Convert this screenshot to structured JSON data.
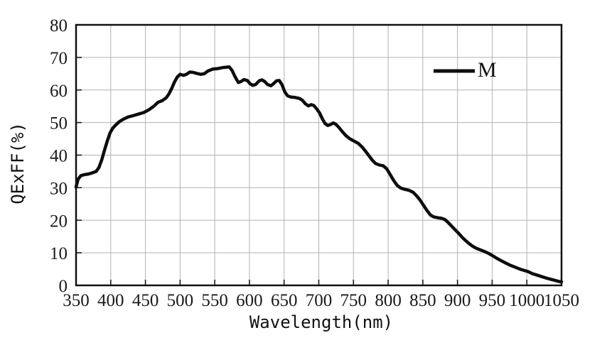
{
  "chart_data": {
    "type": "line",
    "title": "",
    "xlabel": "Wavelength(nm)",
    "ylabel": "QExFF(%)",
    "xlim": [
      350,
      1050
    ],
    "ylim": [
      0,
      80
    ],
    "x_ticks": [
      350,
      400,
      450,
      500,
      550,
      600,
      650,
      700,
      750,
      800,
      850,
      900,
      950,
      1000,
      1050
    ],
    "y_ticks": [
      0,
      10,
      20,
      30,
      40,
      50,
      60,
      70,
      80
    ],
    "grid": true,
    "grid_color": "#b2b2b2",
    "curve_color": "#0d0d0d",
    "legend": {
      "position": "top-right",
      "entries": [
        {
          "label": "M",
          "color": "#0d0d0d"
        }
      ]
    },
    "series": [
      {
        "name": "M",
        "points": [
          [
            350,
            30.2
          ],
          [
            353,
            32.6
          ],
          [
            357,
            33.7
          ],
          [
            362,
            34.0
          ],
          [
            368,
            34.2
          ],
          [
            374,
            34.6
          ],
          [
            379,
            35.0
          ],
          [
            383,
            36.2
          ],
          [
            387,
            38.5
          ],
          [
            391,
            41.5
          ],
          [
            395,
            44.3
          ],
          [
            399,
            46.8
          ],
          [
            403,
            48.3
          ],
          [
            407,
            49.2
          ],
          [
            412,
            50.2
          ],
          [
            418,
            51.0
          ],
          [
            425,
            51.7
          ],
          [
            432,
            52.1
          ],
          [
            440,
            52.6
          ],
          [
            448,
            53.1
          ],
          [
            455,
            53.9
          ],
          [
            462,
            55.0
          ],
          [
            468,
            56.2
          ],
          [
            474,
            56.7
          ],
          [
            480,
            57.6
          ],
          [
            484,
            58.8
          ],
          [
            488,
            60.5
          ],
          [
            492,
            62.5
          ],
          [
            496,
            64.0
          ],
          [
            500,
            64.8
          ],
          [
            505,
            64.5
          ],
          [
            509,
            64.8
          ],
          [
            514,
            65.5
          ],
          [
            519,
            65.4
          ],
          [
            524,
            65.1
          ],
          [
            530,
            64.8
          ],
          [
            535,
            65.0
          ],
          [
            540,
            65.8
          ],
          [
            547,
            66.4
          ],
          [
            555,
            66.6
          ],
          [
            562,
            66.9
          ],
          [
            571,
            67.1
          ],
          [
            575,
            66.0
          ],
          [
            579,
            64.2
          ],
          [
            584,
            62.3
          ],
          [
            588,
            62.6
          ],
          [
            592,
            63.2
          ],
          [
            597,
            62.9
          ],
          [
            601,
            61.9
          ],
          [
            605,
            61.4
          ],
          [
            609,
            61.7
          ],
          [
            614,
            62.8
          ],
          [
            618,
            63.1
          ],
          [
            622,
            62.6
          ],
          [
            626,
            61.7
          ],
          [
            631,
            61.3
          ],
          [
            635,
            62.0
          ],
          [
            639,
            62.8
          ],
          [
            643,
            62.9
          ],
          [
            647,
            61.6
          ],
          [
            651,
            59.4
          ],
          [
            655,
            58.2
          ],
          [
            660,
            57.8
          ],
          [
            666,
            57.7
          ],
          [
            672,
            57.4
          ],
          [
            676,
            56.9
          ],
          [
            681,
            55.7
          ],
          [
            685,
            55.1
          ],
          [
            689,
            55.5
          ],
          [
            693,
            55.2
          ],
          [
            697,
            54.2
          ],
          [
            701,
            53.0
          ],
          [
            705,
            51.2
          ],
          [
            709,
            49.7
          ],
          [
            713,
            49.1
          ],
          [
            717,
            49.4
          ],
          [
            721,
            49.9
          ],
          [
            725,
            49.4
          ],
          [
            729,
            48.5
          ],
          [
            734,
            47.2
          ],
          [
            739,
            46.0
          ],
          [
            745,
            45.0
          ],
          [
            751,
            44.3
          ],
          [
            757,
            43.6
          ],
          [
            762,
            42.6
          ],
          [
            767,
            41.3
          ],
          [
            772,
            39.9
          ],
          [
            777,
            38.5
          ],
          [
            782,
            37.4
          ],
          [
            787,
            37.0
          ],
          [
            793,
            36.7
          ],
          [
            798,
            35.8
          ],
          [
            803,
            34.0
          ],
          [
            808,
            32.2
          ],
          [
            813,
            30.7
          ],
          [
            818,
            29.9
          ],
          [
            824,
            29.5
          ],
          [
            830,
            29.2
          ],
          [
            836,
            28.6
          ],
          [
            841,
            27.5
          ],
          [
            846,
            26.2
          ],
          [
            851,
            24.6
          ],
          [
            856,
            23.0
          ],
          [
            861,
            21.6
          ],
          [
            866,
            21.0
          ],
          [
            871,
            20.8
          ],
          [
            877,
            20.6
          ],
          [
            882,
            20.2
          ],
          [
            887,
            19.2
          ],
          [
            892,
            18.1
          ],
          [
            897,
            17.0
          ],
          [
            902,
            15.9
          ],
          [
            907,
            14.7
          ],
          [
            912,
            13.7
          ],
          [
            917,
            12.8
          ],
          [
            922,
            12.0
          ],
          [
            927,
            11.4
          ],
          [
            933,
            10.9
          ],
          [
            939,
            10.4
          ],
          [
            945,
            9.8
          ],
          [
            950,
            9.2
          ],
          [
            956,
            8.4
          ],
          [
            962,
            7.7
          ],
          [
            969,
            6.9
          ],
          [
            976,
            6.2
          ],
          [
            983,
            5.6
          ],
          [
            990,
            5.0
          ],
          [
            996,
            4.6
          ],
          [
            1002,
            4.2
          ],
          [
            1008,
            3.6
          ],
          [
            1014,
            3.2
          ],
          [
            1020,
            2.8
          ],
          [
            1027,
            2.3
          ],
          [
            1034,
            1.9
          ],
          [
            1041,
            1.5
          ],
          [
            1046,
            1.2
          ],
          [
            1050,
            1.1
          ]
        ]
      }
    ]
  }
}
